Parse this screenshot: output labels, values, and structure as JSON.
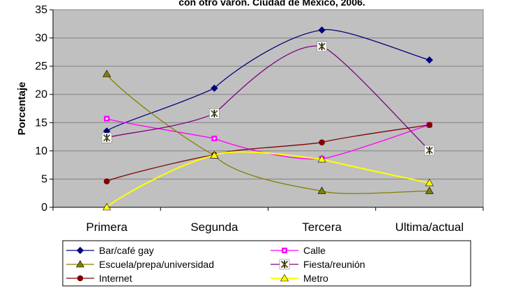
{
  "chart_data": {
    "type": "line",
    "title": "con otro varón. Ciudad de México, 2006.",
    "ylabel": "Porcentaje",
    "xlabel": "",
    "ylim": [
      0,
      35
    ],
    "yticks": [
      0,
      5,
      10,
      15,
      20,
      25,
      30,
      35
    ],
    "grid": "horizontal",
    "legend_position": "bottom",
    "categories": [
      "Primera",
      "Segunda",
      "Tercera",
      "Ultima/actual"
    ],
    "series": [
      {
        "name": "Bar/café gay",
        "values": [
          13.5,
          21.1,
          31.4,
          26.1
        ],
        "color": "#000080",
        "marker": "diamond"
      },
      {
        "name": "Calle",
        "values": [
          15.7,
          12.2,
          8.6,
          14.6
        ],
        "color": "#ff00ff",
        "marker": "square"
      },
      {
        "name": "Escuela/prepa/universidad",
        "values": [
          23.6,
          9.2,
          2.9,
          2.9
        ],
        "color": "#808000",
        "marker": "triangle"
      },
      {
        "name": "Fiesta/reunión",
        "values": [
          12.3,
          16.6,
          28.5,
          10.1
        ],
        "color": "#800080",
        "marker": "star"
      },
      {
        "name": "Internet",
        "values": [
          4.6,
          9.3,
          11.5,
          14.6
        ],
        "color": "#800000",
        "marker": "circle"
      },
      {
        "name": "Metro",
        "values": [
          0.0,
          9.2,
          8.5,
          4.3
        ],
        "color": "#ffff00",
        "marker": "triangle"
      }
    ]
  }
}
